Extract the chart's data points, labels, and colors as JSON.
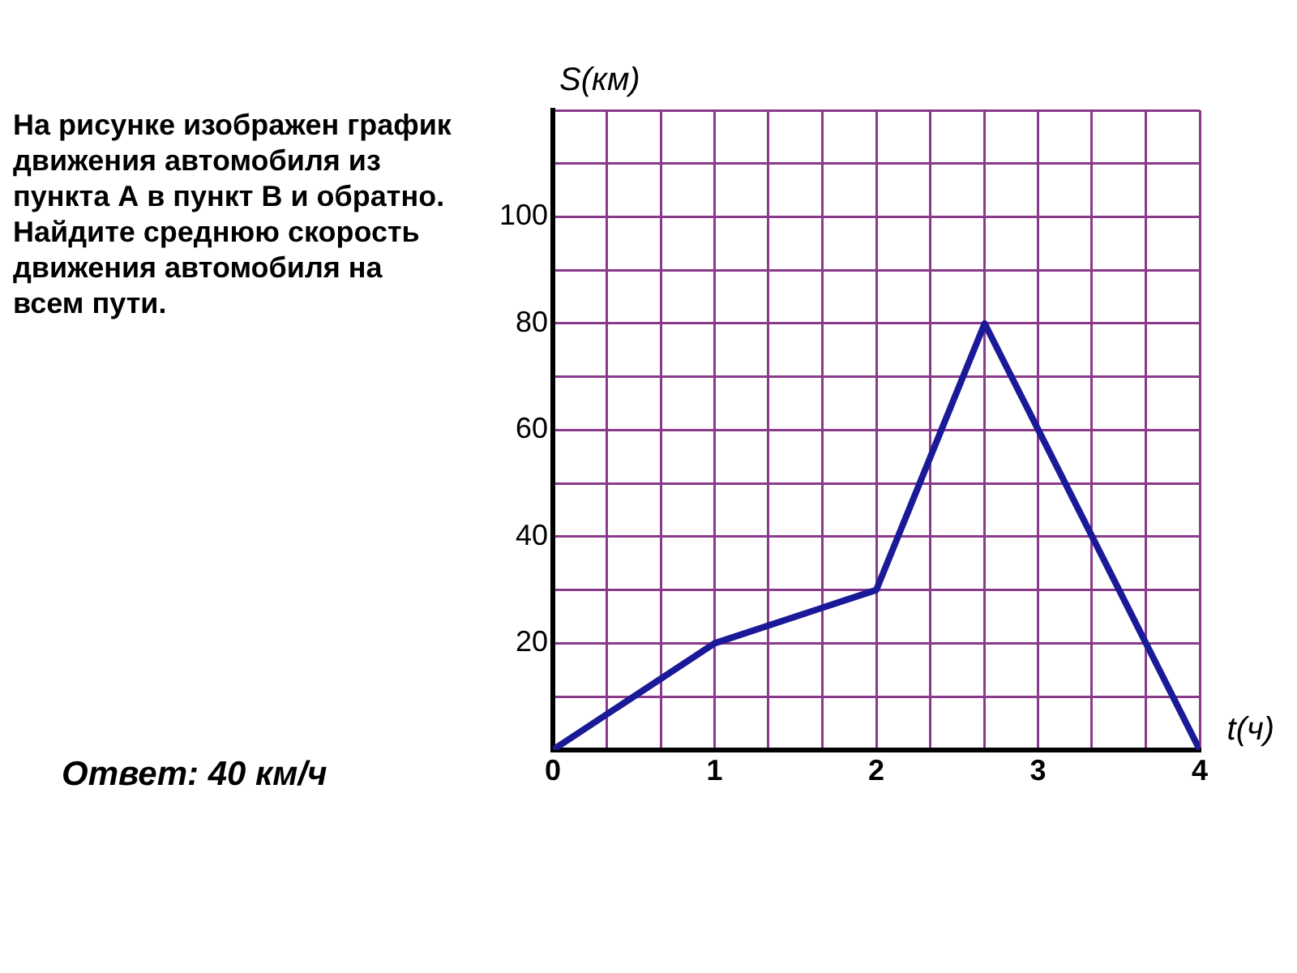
{
  "chart_data": {
    "type": "line",
    "xlabel": "t(ч)",
    "ylabel": "S(км)",
    "x": [
      0,
      1,
      2,
      2.67,
      4
    ],
    "series": [
      {
        "color": "#1a1a99",
        "values": [
          0,
          20,
          30,
          80,
          0
        ]
      }
    ],
    "xlim": [
      0,
      4
    ],
    "ylim": [
      0,
      120
    ],
    "xticks": [
      0,
      {
        "value": 0.333,
        "label": null
      },
      {
        "value": 0.667,
        "label": null
      },
      1,
      {
        "value": 1.333,
        "label": null
      },
      {
        "value": 1.667,
        "label": null
      },
      2,
      {
        "value": 2.333,
        "label": null
      },
      {
        "value": 2.667,
        "label": null
      },
      3,
      {
        "value": 3.333,
        "label": null
      },
      {
        "value": 3.667,
        "label": null
      },
      4
    ],
    "yticks": [
      {
        "value": 0,
        "label": null
      },
      {
        "value": 10,
        "label": null
      },
      20,
      {
        "value": 30,
        "label": null
      },
      40,
      {
        "value": 50,
        "label": null
      },
      60,
      {
        "value": 70,
        "label": null
      },
      80,
      {
        "value": 90,
        "label": null
      },
      100,
      {
        "value": 110,
        "label": null
      },
      {
        "value": 120,
        "label": null
      }
    ],
    "grid": true,
    "marker": "none",
    "line_style": "solid",
    "legend": false,
    "annotations": [
      "На рисунке изображен график движения автомобиля из пункта А в пункт В и обратно. Найдите среднюю скорость движения автомобиля на всем пути.",
      "Ответ: 40 км/ч"
    ]
  }
}
